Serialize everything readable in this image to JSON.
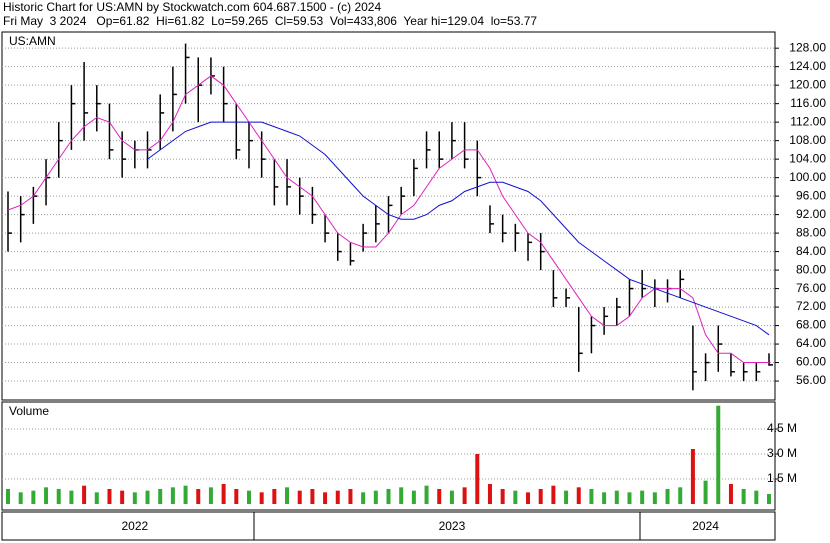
{
  "chart_data": {
    "type": "ohlc",
    "title": "Historic Chart for US:AMN by Stockwatch.com 604.687.1500 - (c) 2024",
    "subtitle": "Fri May  3 2024   Op=61.82  Hi=61.82  Lo=59.265  Cl=59.53  Vol=433,806  Year hi=129.04  lo=53.77",
    "symbol": "US:AMN",
    "volume_label": "Volume",
    "categories": [
      null,
      null,
      null,
      null,
      null,
      null,
      null,
      null,
      null,
      null,
      "2022",
      null,
      null,
      null,
      null,
      null,
      null,
      null,
      null,
      null,
      null,
      null,
      null,
      null,
      null,
      null,
      null,
      null,
      null,
      null,
      null,
      null,
      null,
      null,
      null,
      "2023",
      null,
      null,
      null,
      null,
      null,
      null,
      null,
      null,
      null,
      null,
      null,
      null,
      null,
      null,
      null,
      null,
      null,
      null,
      null,
      "2024",
      null,
      null,
      null,
      null,
      null
    ],
    "high": [
      97,
      96,
      98,
      104,
      112,
      120,
      125,
      120,
      116,
      110,
      108,
      110,
      118,
      124,
      129,
      126,
      126,
      124,
      116,
      112,
      110,
      104,
      104,
      100,
      98,
      92,
      88,
      86,
      90,
      94,
      96,
      98,
      104,
      110,
      110,
      112,
      112,
      108,
      94,
      92,
      90,
      88,
      88,
      80,
      76,
      72,
      70,
      72,
      74,
      78,
      80,
      78,
      78,
      80,
      68,
      62,
      68,
      62,
      60,
      60,
      62
    ],
    "low": [
      84,
      86,
      90,
      94,
      100,
      106,
      108,
      110,
      104,
      100,
      102,
      102,
      106,
      110,
      116,
      112,
      118,
      112,
      104,
      102,
      100,
      94,
      94,
      92,
      90,
      86,
      82,
      81,
      84,
      86,
      88,
      92,
      96,
      102,
      102,
      104,
      102,
      96,
      88,
      86,
      84,
      82,
      80,
      72,
      72,
      58,
      62,
      66,
      68,
      70,
      74,
      72,
      73,
      74,
      54,
      56,
      58,
      57,
      56,
      56,
      59.3
    ],
    "close": [
      88,
      92,
      96,
      100,
      108,
      116,
      114,
      116,
      106,
      104,
      106,
      106,
      114,
      118,
      126,
      120,
      122,
      116,
      106,
      108,
      104,
      98,
      98,
      96,
      92,
      88,
      84,
      82,
      88,
      90,
      94,
      96,
      102,
      106,
      104,
      108,
      104,
      100,
      90,
      88,
      88,
      86,
      84,
      74,
      74,
      62,
      68,
      70,
      72,
      76,
      76,
      76,
      76,
      78,
      58,
      60,
      64,
      58,
      58,
      58,
      59.5
    ],
    "price_color": "#000000",
    "series": [
      {
        "color": "#e020c0",
        "values": [
          93,
          94,
          96,
          100,
          104,
          108,
          111,
          113,
          112,
          108,
          106,
          106,
          108,
          112,
          118,
          120,
          122,
          120,
          116,
          112,
          108,
          104,
          100,
          98,
          96,
          92,
          88,
          86,
          85,
          85,
          88,
          92,
          94,
          98,
          102,
          104,
          106,
          106,
          102,
          96,
          92,
          88,
          86,
          82,
          78,
          74,
          70,
          68,
          68,
          70,
          74,
          76,
          76,
          76,
          74,
          66,
          62,
          62,
          60,
          60,
          60
        ]
      },
      {
        "color": "#1010d0",
        "values": [
          null,
          null,
          null,
          null,
          null,
          null,
          null,
          null,
          null,
          null,
          null,
          104,
          106,
          108,
          110,
          111,
          112,
          112,
          112,
          112,
          112,
          111,
          110,
          109,
          107,
          105,
          102,
          99,
          96,
          94,
          92,
          91,
          91,
          92,
          94,
          95,
          97,
          98,
          99,
          99,
          98,
          97,
          95,
          92,
          89,
          86,
          84,
          82,
          80,
          78,
          77,
          76,
          75,
          74,
          73,
          72,
          71,
          70,
          69,
          68,
          66
        ]
      }
    ],
    "volume": [
      900000,
      700000,
      800000,
      1000000,
      900000,
      800000,
      1100000,
      700000,
      900000,
      800000,
      700000,
      800000,
      900000,
      1000000,
      1100000,
      900000,
      1000000,
      1200000,
      900000,
      800000,
      700000,
      900000,
      1000000,
      800000,
      900000,
      700000,
      800000,
      900000,
      700000,
      800000,
      900000,
      1000000,
      800000,
      1100000,
      900000,
      800000,
      1000000,
      3000000,
      1200000,
      900000,
      800000,
      700000,
      900000,
      1100000,
      800000,
      1000000,
      900000,
      700000,
      800000,
      700000,
      800000,
      700000,
      900000,
      1000000,
      3300000,
      1400000,
      5900000,
      1200000,
      900000,
      800000,
      600000
    ],
    "volume_colors": {
      "up": "#33aa33",
      "down": "#dd1111"
    },
    "ylim": [
      51.9,
      131.5
    ],
    "yticks": [
      {
        "value": 56,
        "label": "56.00"
      },
      {
        "value": 60,
        "label": "60.00"
      },
      {
        "value": 64,
        "label": "64.00"
      },
      {
        "value": 68,
        "label": "68.00"
      },
      {
        "value": 72,
        "label": "72.00"
      },
      {
        "value": 76,
        "label": "76.00"
      },
      {
        "value": 80,
        "label": "80.00"
      },
      {
        "value": 84,
        "label": "84.00"
      },
      {
        "value": 88,
        "label": "88.00"
      },
      {
        "value": 92,
        "label": "92.00"
      },
      {
        "value": 96,
        "label": "96.00"
      },
      {
        "value": 100,
        "label": "100.00"
      },
      {
        "value": 104,
        "label": "104.00"
      },
      {
        "value": 108,
        "label": "108.00"
      },
      {
        "value": 112,
        "label": "112.00"
      },
      {
        "value": 116,
        "label": "116.00"
      },
      {
        "value": 120,
        "label": "120.00"
      },
      {
        "value": 124,
        "label": "124.00"
      },
      {
        "value": 128,
        "label": "128.00"
      }
    ],
    "y2lim": [
      -360000,
      6120000
    ],
    "y2ticks": [
      {
        "value": 1500000,
        "label": "1.5 M"
      },
      {
        "value": 3000000,
        "label": "3.0 M"
      },
      {
        "value": 4500000,
        "label": "4.5 M"
      }
    ],
    "grid": true
  }
}
